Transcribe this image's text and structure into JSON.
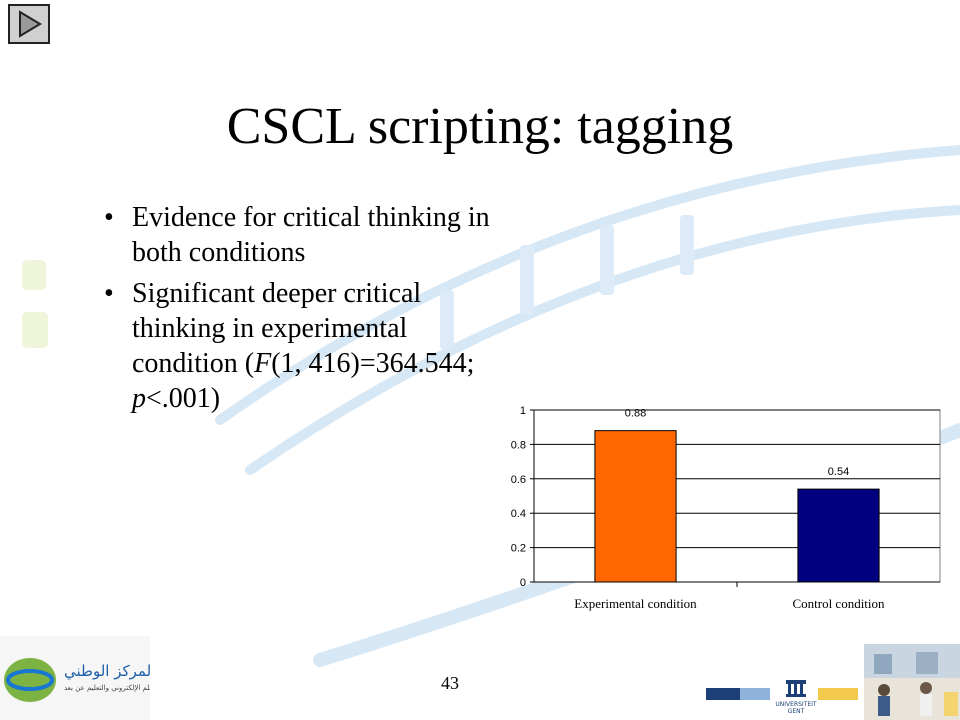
{
  "slide": {
    "title": "CSCL scripting: tagging",
    "bullets": [
      {
        "text": "Evidence for critical thinking in both conditions"
      },
      {
        "text": "Significant deeper critical thinking in experimental condition (F(1, 416)=364.544; p<.001)"
      }
    ],
    "page_number": "43",
    "logo_left_text": "المركز الوطني",
    "logo_left_subtext": "للتعلم الإلكتروني والتعليم عن بعد",
    "logo_right_text": "UNIVERSITEIT GENT"
  },
  "colors": {
    "experimental": "#FF6600",
    "control": "#000080",
    "watermark": "#cfe2f2"
  },
  "chart_data": {
    "type": "bar",
    "categories": [
      "Experimental condition",
      "Control condition"
    ],
    "values": [
      0.88,
      0.54
    ],
    "data_labels": [
      "0.88",
      "0.54"
    ],
    "ylim": [
      0,
      1
    ],
    "yticks": [
      0,
      0.2,
      0.4,
      0.6,
      0.8,
      1
    ],
    "ytick_labels": [
      "0",
      "0.2",
      "0.4",
      "0.6",
      "0.8",
      "1"
    ],
    "grid": true,
    "title": "",
    "xlabel": "",
    "ylabel": ""
  }
}
